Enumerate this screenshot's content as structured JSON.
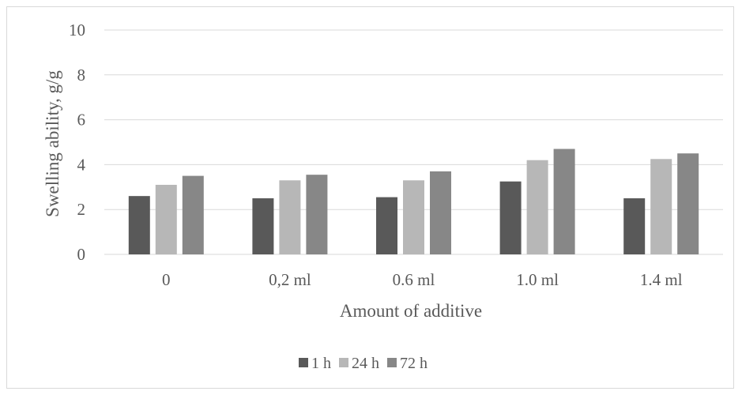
{
  "chart_data": {
    "type": "bar",
    "title": "",
    "xlabel": "Amount of additive",
    "ylabel": "Swelling ability, g/g",
    "ylim": [
      0,
      10
    ],
    "yticks": [
      0,
      2,
      4,
      6,
      8,
      10
    ],
    "grid": true,
    "legend_position": "bottom",
    "categories": [
      "0",
      "0,2 ml",
      "0.6 ml",
      "1.0 ml",
      "1.4 ml"
    ],
    "series": [
      {
        "name": "1 h",
        "color": "#595959",
        "values": [
          2.6,
          2.5,
          2.55,
          3.25,
          2.5
        ]
      },
      {
        "name": "24 h",
        "color": "#b7b7b7",
        "values": [
          3.1,
          3.3,
          3.3,
          4.2,
          4.25
        ]
      },
      {
        "name": "72 h",
        "color": "#878787",
        "values": [
          3.5,
          3.55,
          3.7,
          4.7,
          4.5
        ]
      }
    ]
  }
}
